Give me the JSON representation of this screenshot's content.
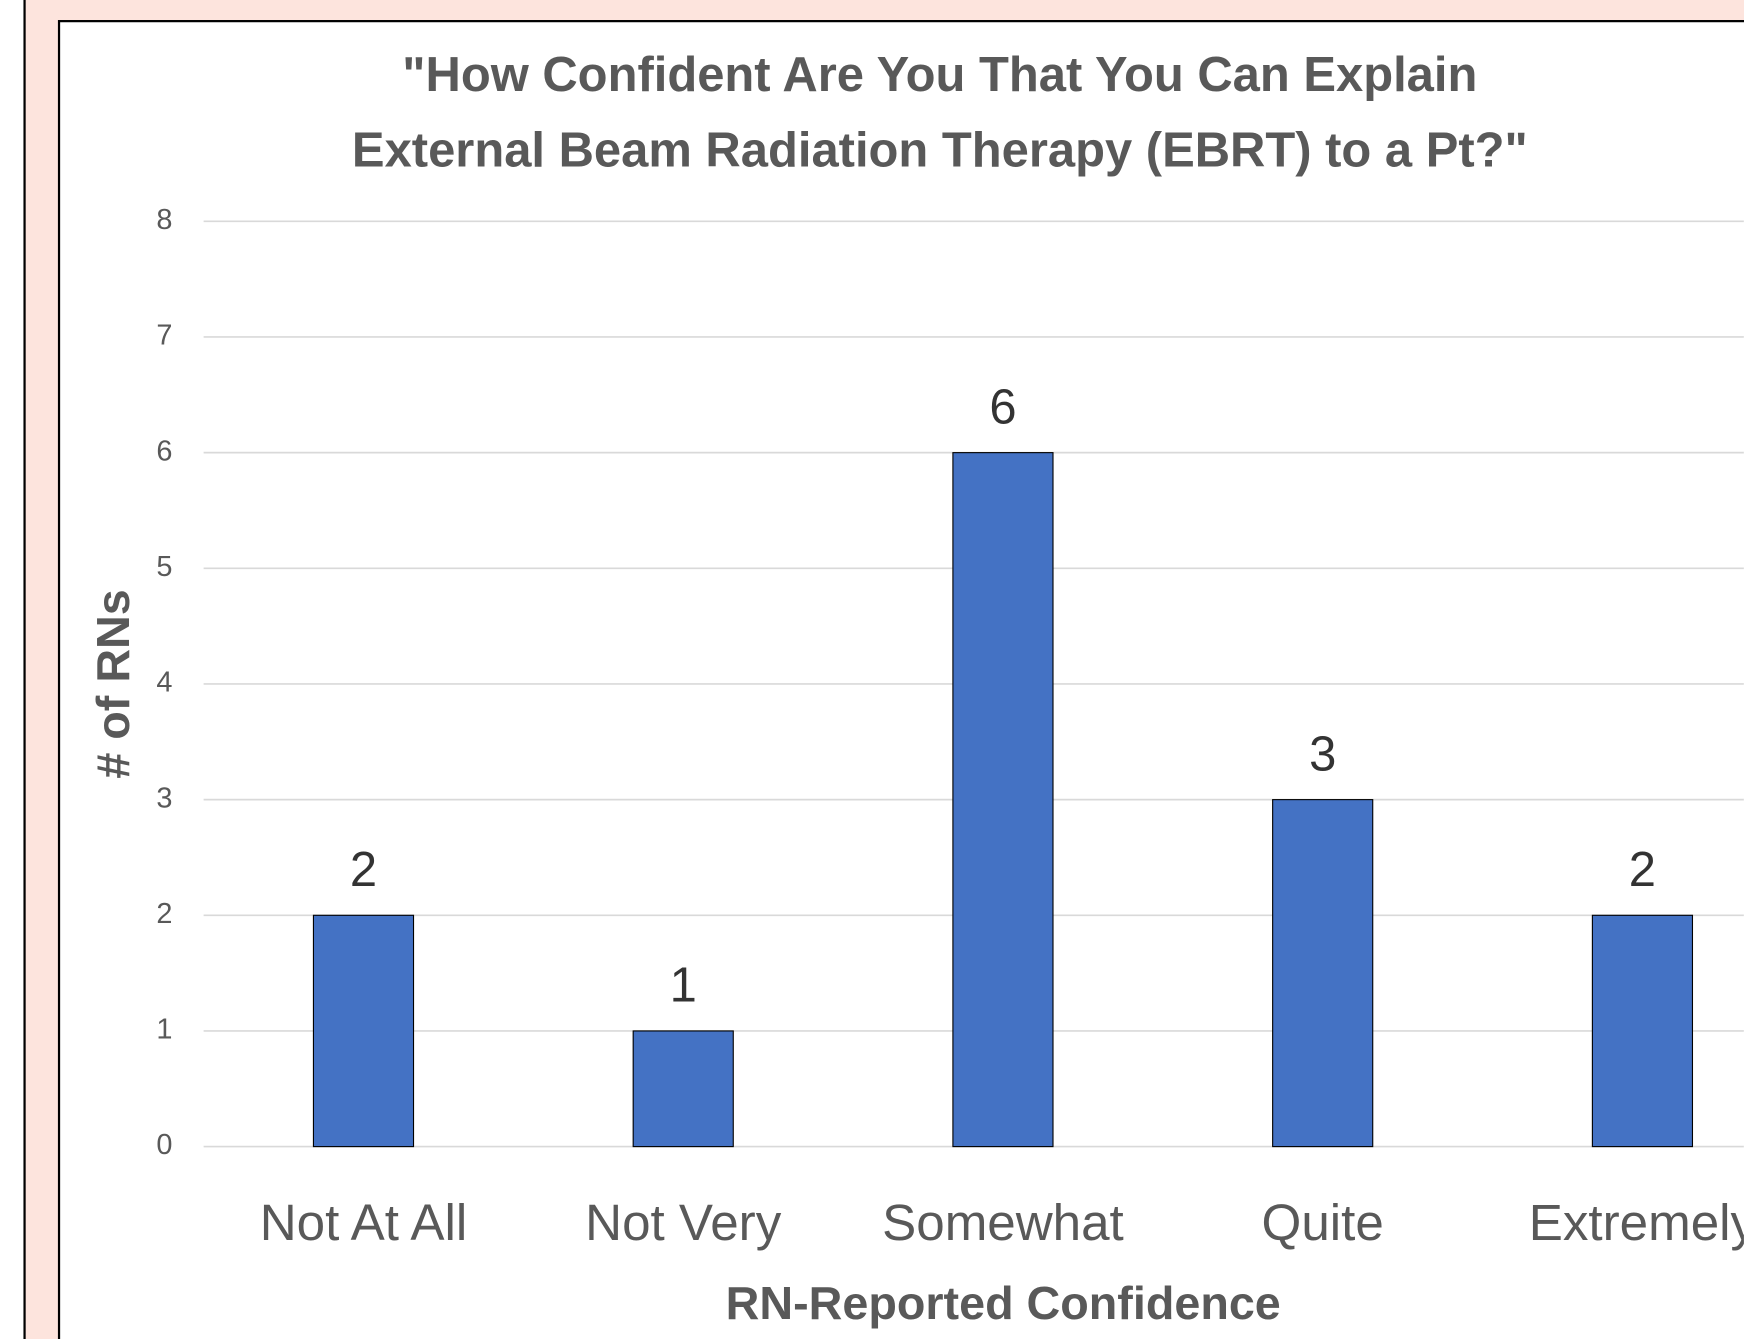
{
  "chart_data": {
    "type": "bar",
    "title": [
      "\"How Confident Are You That You Can Explain",
      "External Beam Radiation Therapy (EBRT) to a Pt?\""
    ],
    "x_label": "RN-Reported Confidence",
    "y_label": "# of RNs",
    "categories": [
      "Not At All",
      "Not Very",
      "Somewhat",
      "Quite",
      "Extremely"
    ],
    "values": [
      2,
      1,
      6,
      3,
      2
    ],
    "color": "#4472c4",
    "ylim": [
      0,
      8
    ],
    "yticks": [
      0,
      1,
      2,
      3,
      4,
      5,
      6,
      7,
      8
    ],
    "grid": true
  }
}
